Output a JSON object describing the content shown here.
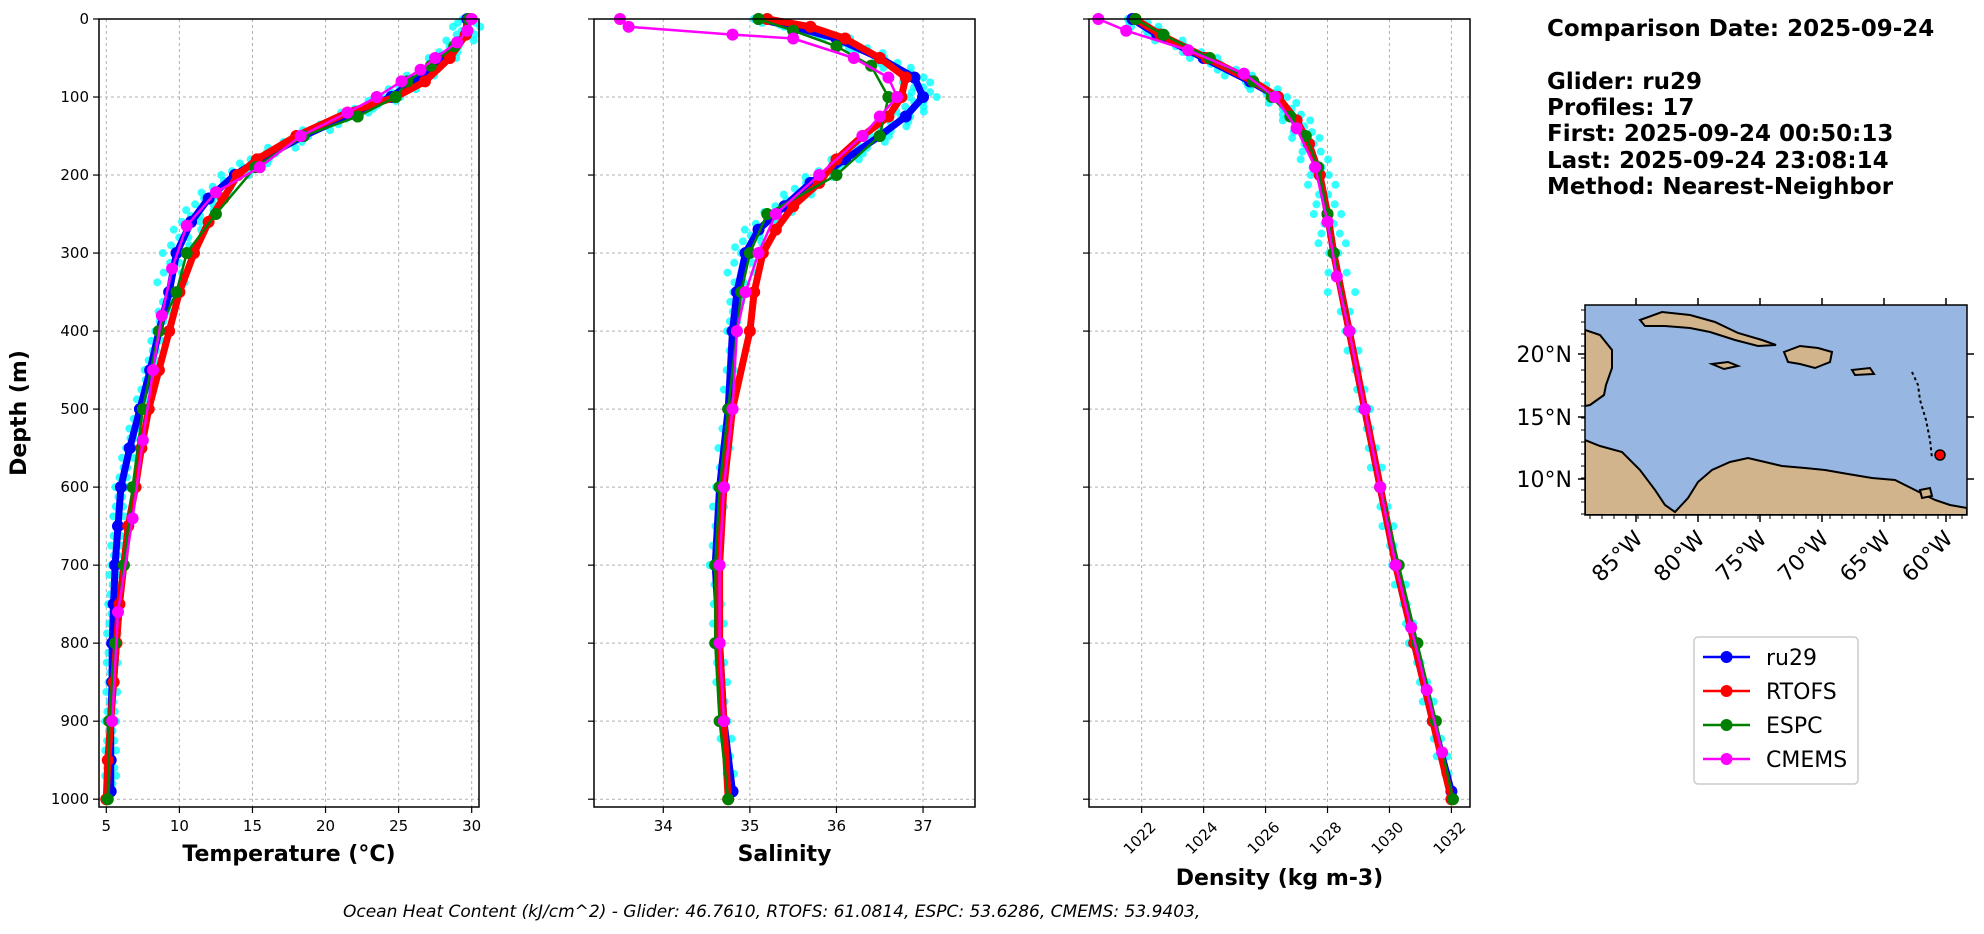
{
  "info": {
    "comparison_date": "Comparison Date: 2025-09-24",
    "glider": "Glider: ru29",
    "profiles": "Profiles: 17",
    "first": "First: 2025-09-24 00:50:13",
    "last": "Last: 2025-09-24 23:08:14",
    "method": "Method: Nearest-Neighbor"
  },
  "footer": "Ocean Heat Content (kJ/cm^2) - Glider: 46.7610,  RTOFS: 61.0814,  ESPC: 53.6286,  CMEMS: 53.9403,",
  "legend": [
    {
      "label": "ru29",
      "color": "#0000ff"
    },
    {
      "label": "RTOFS",
      "color": "#ff0000"
    },
    {
      "label": "ESPC",
      "color": "#008000"
    },
    {
      "label": "CMEMS",
      "color": "#ff00ff"
    }
  ],
  "map": {
    "lon_ticks": [
      "85°W",
      "80°W",
      "75°W",
      "70°W",
      "65°W",
      "60°W"
    ],
    "lat_ticks": [
      "20°N",
      "15°N",
      "10°N"
    ],
    "ocean_color": "#97b6e1",
    "land_color": "#d2b48c",
    "glider_marker_color": "#ff0000",
    "glider_position": {
      "lon": -59.8,
      "lat": 12.0
    }
  },
  "chart_data": [
    {
      "type": "line",
      "xlabel": "Temperature (°C)",
      "ylabel": "Depth (m)",
      "xlim": [
        4.5,
        30.5
      ],
      "ylim": [
        1010,
        0
      ],
      "x_ticks": [
        5,
        10,
        15,
        20,
        25,
        30
      ],
      "y_ticks": [
        0,
        100,
        200,
        300,
        400,
        500,
        600,
        700,
        800,
        900,
        1000
      ],
      "grid": true,
      "series": [
        {
          "name": "ru29",
          "color": "#0000ff",
          "depth": [
            0,
            20,
            50,
            80,
            100,
            120,
            150,
            180,
            200,
            230,
            260,
            300,
            350,
            400,
            450,
            500,
            550,
            600,
            650,
            700,
            750,
            800,
            850,
            900,
            950,
            990
          ],
          "values": [
            29.7,
            29.6,
            28.0,
            26.0,
            24.5,
            22.0,
            18.5,
            15.5,
            13.8,
            12.0,
            10.8,
            9.8,
            9.3,
            8.6,
            8.0,
            7.3,
            6.6,
            6.0,
            5.8,
            5.6,
            5.5,
            5.4,
            5.4,
            5.3,
            5.3,
            5.3
          ]
        },
        {
          "name": "RTOFS",
          "color": "#ff0000",
          "depth": [
            0,
            20,
            50,
            80,
            100,
            120,
            150,
            180,
            200,
            230,
            260,
            300,
            350,
            400,
            450,
            500,
            550,
            600,
            650,
            700,
            750,
            800,
            850,
            900,
            950,
            1000
          ],
          "values": [
            29.8,
            29.6,
            28.5,
            26.8,
            24.8,
            21.5,
            18.0,
            15.3,
            14.0,
            13.0,
            12.0,
            11.0,
            10.0,
            9.3,
            8.6,
            7.9,
            7.4,
            7.0,
            6.5,
            6.2,
            5.9,
            5.7,
            5.5,
            5.3,
            5.1,
            5.0
          ]
        },
        {
          "name": "ESPC",
          "color": "#008000",
          "depth": [
            0,
            15,
            35,
            60,
            80,
            100,
            125,
            150,
            190,
            250,
            300,
            350,
            400,
            500,
            600,
            700,
            800,
            900,
            1000
          ],
          "values": [
            29.8,
            29.7,
            28.8,
            27.2,
            25.6,
            24.8,
            22.2,
            18.5,
            15.2,
            12.5,
            10.5,
            9.8,
            8.6,
            7.5,
            6.8,
            6.2,
            5.6,
            5.2,
            5.1
          ]
        },
        {
          "name": "CMEMS",
          "color": "#ff00ff",
          "depth": [
            0,
            15,
            30,
            50,
            65,
            80,
            100,
            120,
            150,
            190,
            222,
            265,
            320,
            380,
            450,
            540,
            640,
            760,
            900
          ],
          "values": [
            30.0,
            29.7,
            29.0,
            27.5,
            26.5,
            25.2,
            23.5,
            21.5,
            18.3,
            15.5,
            12.5,
            10.5,
            9.5,
            8.8,
            8.2,
            7.5,
            6.8,
            5.8,
            5.4
          ]
        }
      ]
    },
    {
      "type": "line",
      "xlabel": "Salinity",
      "ylabel": "",
      "xlim": [
        33.2,
        37.6
      ],
      "ylim": [
        1010,
        0
      ],
      "x_ticks": [
        34,
        35,
        36,
        37
      ],
      "x_tick_labels": [
        "34",
        "35",
        "36",
        "37"
      ],
      "y_ticks": [
        0,
        100,
        200,
        300,
        400,
        500,
        600,
        700,
        800,
        900,
        1000
      ],
      "grid": true,
      "series": [
        {
          "name": "ru29",
          "color": "#0000ff",
          "depth": [
            0,
            10,
            25,
            50,
            75,
            100,
            125,
            150,
            180,
            210,
            240,
            270,
            300,
            350,
            400,
            500,
            600,
            700,
            800,
            900,
            990
          ],
          "values": [
            35.1,
            35.5,
            36.0,
            36.5,
            36.9,
            37.0,
            36.8,
            36.5,
            36.1,
            35.7,
            35.4,
            35.1,
            34.95,
            34.85,
            34.8,
            34.75,
            34.65,
            34.6,
            34.65,
            34.7,
            34.8
          ]
        },
        {
          "name": "RTOFS",
          "color": "#ff0000",
          "depth": [
            0,
            10,
            25,
            50,
            75,
            100,
            125,
            150,
            180,
            210,
            240,
            270,
            300,
            350,
            400,
            500,
            600,
            700,
            800,
            900,
            1000
          ],
          "values": [
            35.2,
            35.7,
            36.1,
            36.5,
            36.8,
            36.75,
            36.6,
            36.3,
            36.0,
            35.8,
            35.5,
            35.3,
            35.15,
            35.05,
            35.0,
            34.8,
            34.7,
            34.65,
            34.65,
            34.7,
            34.75
          ]
        },
        {
          "name": "ESPC",
          "color": "#008000",
          "depth": [
            0,
            15,
            35,
            60,
            100,
            150,
            200,
            250,
            300,
            350,
            400,
            500,
            600,
            700,
            800,
            900,
            1000
          ],
          "values": [
            35.1,
            35.5,
            36.0,
            36.4,
            36.6,
            36.5,
            36.0,
            35.2,
            35.0,
            34.9,
            34.85,
            34.75,
            34.65,
            34.6,
            34.6,
            34.65,
            34.75
          ]
        },
        {
          "name": "CMEMS",
          "color": "#ff00ff",
          "depth": [
            0,
            10,
            20,
            25,
            50,
            75,
            100,
            125,
            150,
            200,
            250,
            300,
            350,
            400,
            500,
            600,
            700,
            800,
            900
          ],
          "values": [
            33.5,
            33.6,
            34.8,
            35.5,
            36.2,
            36.6,
            36.7,
            36.5,
            36.3,
            35.8,
            35.3,
            35.1,
            34.95,
            34.85,
            34.8,
            34.7,
            34.65,
            34.65,
            34.7
          ]
        }
      ]
    },
    {
      "type": "line",
      "xlabel": "Density (kg m-3)",
      "ylabel": "",
      "xlim": [
        1020.3,
        1032.6
      ],
      "ylim": [
        1010,
        0
      ],
      "x_ticks": [
        1022,
        1024,
        1026,
        1028,
        1030,
        1032
      ],
      "x_tick_labels": [
        "1022",
        "1024",
        "1026",
        "1028",
        "1030",
        "1032"
      ],
      "y_ticks": [
        0,
        100,
        200,
        300,
        400,
        500,
        600,
        700,
        800,
        900,
        1000
      ],
      "grid": true,
      "series": [
        {
          "name": "ru29",
          "color": "#0000ff",
          "depth": [
            0,
            20,
            50,
            80,
            100,
            130,
            160,
            200,
            250,
            300,
            400,
            500,
            600,
            700,
            800,
            900,
            990
          ],
          "values": [
            1021.7,
            1022.5,
            1024.0,
            1025.5,
            1026.4,
            1027.0,
            1027.4,
            1027.75,
            1028.0,
            1028.2,
            1028.7,
            1029.2,
            1029.7,
            1030.2,
            1030.8,
            1031.4,
            1032.0
          ]
        },
        {
          "name": "RTOFS",
          "color": "#ff0000",
          "depth": [
            0,
            20,
            50,
            80,
            100,
            130,
            160,
            200,
            250,
            300,
            400,
            500,
            600,
            700,
            800,
            900,
            1000
          ],
          "values": [
            1021.8,
            1022.6,
            1024.1,
            1025.6,
            1026.4,
            1027.0,
            1027.4,
            1027.75,
            1028.0,
            1028.2,
            1028.7,
            1029.2,
            1029.7,
            1030.2,
            1030.8,
            1031.4,
            1032.0
          ]
        },
        {
          "name": "ESPC",
          "color": "#008000",
          "depth": [
            0,
            20,
            50,
            80,
            100,
            125,
            150,
            190,
            250,
            300,
            400,
            500,
            600,
            700,
            800,
            900,
            1000
          ],
          "values": [
            1021.8,
            1022.7,
            1024.2,
            1025.6,
            1026.2,
            1026.8,
            1027.3,
            1027.7,
            1028.0,
            1028.2,
            1028.7,
            1029.2,
            1029.7,
            1030.3,
            1030.9,
            1031.5,
            1032.05
          ]
        },
        {
          "name": "CMEMS",
          "color": "#ff00ff",
          "depth": [
            0,
            15,
            40,
            70,
            100,
            140,
            190,
            260,
            330,
            400,
            500,
            600,
            700,
            780,
            860,
            940
          ],
          "values": [
            1020.6,
            1021.5,
            1023.5,
            1025.3,
            1026.3,
            1027.0,
            1027.6,
            1028.0,
            1028.3,
            1028.7,
            1029.2,
            1029.7,
            1030.2,
            1030.7,
            1031.2,
            1031.7
          ]
        }
      ]
    }
  ]
}
